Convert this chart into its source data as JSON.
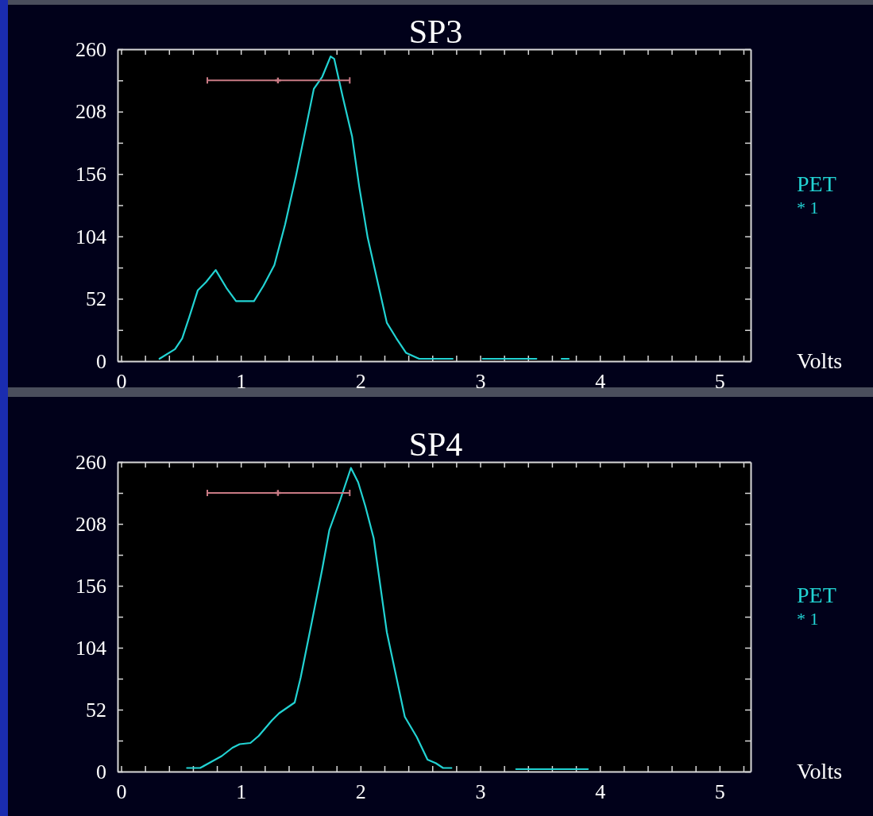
{
  "chart_data": [
    {
      "type": "line",
      "title": "SP3",
      "xlabel": "Volts",
      "legend": "right",
      "grid": false,
      "marker": "none",
      "line_style": "solid",
      "annotations": [
        "* 1"
      ],
      "xlim": [
        -0.03,
        5.26
      ],
      "ylim": [
        0,
        260
      ],
      "xticks": [
        0,
        {
          "value": 0.2,
          "label": null
        },
        {
          "value": 0.4,
          "label": null
        },
        {
          "value": 0.6,
          "label": null
        },
        {
          "value": 0.8,
          "label": null
        },
        1,
        {
          "value": 1.2,
          "label": null
        },
        {
          "value": 1.4,
          "label": null
        },
        {
          "value": 1.6,
          "label": null
        },
        {
          "value": 1.8,
          "label": null
        },
        2,
        {
          "value": 2.2,
          "label": null
        },
        {
          "value": 2.4,
          "label": null
        },
        {
          "value": 2.6,
          "label": null
        },
        {
          "value": 2.8,
          "label": null
        },
        3,
        {
          "value": 3.2,
          "label": null
        },
        {
          "value": 3.4,
          "label": null
        },
        {
          "value": 3.6,
          "label": null
        },
        {
          "value": 3.8,
          "label": null
        },
        4,
        {
          "value": 4.2,
          "label": null
        },
        {
          "value": 4.4,
          "label": null
        },
        {
          "value": 4.6,
          "label": null
        },
        {
          "value": 4.8,
          "label": null
        },
        5,
        {
          "value": 5.2,
          "label": null
        }
      ],
      "yticks": [
        0,
        {
          "value": 26,
          "label": null
        },
        52,
        {
          "value": 78,
          "label": null
        },
        104,
        {
          "value": 130,
          "label": null
        },
        156,
        {
          "value": 182,
          "label": null
        },
        208,
        {
          "value": 234,
          "label": null
        },
        260
      ],
      "series": [
        {
          "name": "PET",
          "color": "#22d3d3",
          "x": [
            0.32,
            0.45,
            0.51,
            0.57,
            0.64,
            0.71,
            0.79,
            0.88,
            0.96,
            1.11,
            1.19,
            1.28,
            1.37,
            1.46,
            1.52,
            1.61,
            1.68,
            1.75,
            1.78,
            1.85,
            1.93,
            1.99,
            2.06,
            2.15,
            2.22,
            2.3,
            2.38,
            2.49,
            2.77,
            2.9,
            3.02,
            3.47,
            3.6,
            3.68,
            3.74
          ],
          "values": [
            2,
            10,
            19,
            37,
            59,
            66,
            76,
            61,
            50,
            50,
            63,
            80,
            114,
            154,
            183,
            227,
            237,
            254,
            252,
            221,
            187,
            145,
            103,
            63,
            32,
            19,
            7,
            2,
            2,
            null,
            2,
            2,
            null,
            2,
            2
          ]
        },
        {
          "type": "scatter",
          "color": "#c87a84",
          "marker": "cross",
          "x": [
            1.31
          ],
          "values": [
            234
          ],
          "xerrors": [
            [
              0.72,
              1.91
            ]
          ]
        }
      ]
    },
    {
      "type": "line",
      "title": "SP4",
      "xlabel": "Volts",
      "legend": "right",
      "grid": false,
      "marker": "none",
      "line_style": "solid",
      "annotations": [
        "* 1"
      ],
      "xlim": [
        -0.03,
        5.26
      ],
      "ylim": [
        0,
        260
      ],
      "xticks": [
        0,
        {
          "value": 0.2,
          "label": null
        },
        {
          "value": 0.4,
          "label": null
        },
        {
          "value": 0.6,
          "label": null
        },
        {
          "value": 0.8,
          "label": null
        },
        1,
        {
          "value": 1.2,
          "label": null
        },
        {
          "value": 1.4,
          "label": null
        },
        {
          "value": 1.6,
          "label": null
        },
        {
          "value": 1.8,
          "label": null
        },
        2,
        {
          "value": 2.2,
          "label": null
        },
        {
          "value": 2.4,
          "label": null
        },
        {
          "value": 2.6,
          "label": null
        },
        {
          "value": 2.8,
          "label": null
        },
        3,
        {
          "value": 3.2,
          "label": null
        },
        {
          "value": 3.4,
          "label": null
        },
        {
          "value": 3.6,
          "label": null
        },
        {
          "value": 3.8,
          "label": null
        },
        4,
        {
          "value": 4.2,
          "label": null
        },
        {
          "value": 4.4,
          "label": null
        },
        {
          "value": 4.6,
          "label": null
        },
        {
          "value": 4.8,
          "label": null
        },
        5,
        {
          "value": 5.2,
          "label": null
        }
      ],
      "yticks": [
        0,
        {
          "value": 26,
          "label": null
        },
        52,
        {
          "value": 78,
          "label": null
        },
        104,
        {
          "value": 130,
          "label": null
        },
        156,
        {
          "value": 182,
          "label": null
        },
        208,
        {
          "value": 234,
          "label": null
        },
        260
      ],
      "series": [
        {
          "name": "PET",
          "color": "#22d3d3",
          "x": [
            0.55,
            0.66,
            0.75,
            0.84,
            0.93,
            0.99,
            1.08,
            1.15,
            1.26,
            1.32,
            1.45,
            1.5,
            1.59,
            1.68,
            1.74,
            1.83,
            1.92,
            1.98,
            2.04,
            2.11,
            2.22,
            2.37,
            2.47,
            2.56,
            2.63,
            2.69,
            2.76,
            3.0,
            3.3,
            3.9
          ],
          "values": [
            3,
            3,
            8,
            13,
            20,
            23,
            24,
            30,
            43,
            49,
            58,
            79,
            124,
            170,
            203,
            228,
            255,
            243,
            223,
            196,
            117,
            46,
            29,
            10,
            7,
            3,
            3,
            null,
            2,
            2
          ]
        },
        {
          "type": "scatter",
          "color": "#c87a84",
          "marker": "cross",
          "x": [
            1.31
          ],
          "values": [
            234
          ],
          "xerrors": [
            [
              0.72,
              1.91
            ]
          ]
        }
      ]
    }
  ]
}
